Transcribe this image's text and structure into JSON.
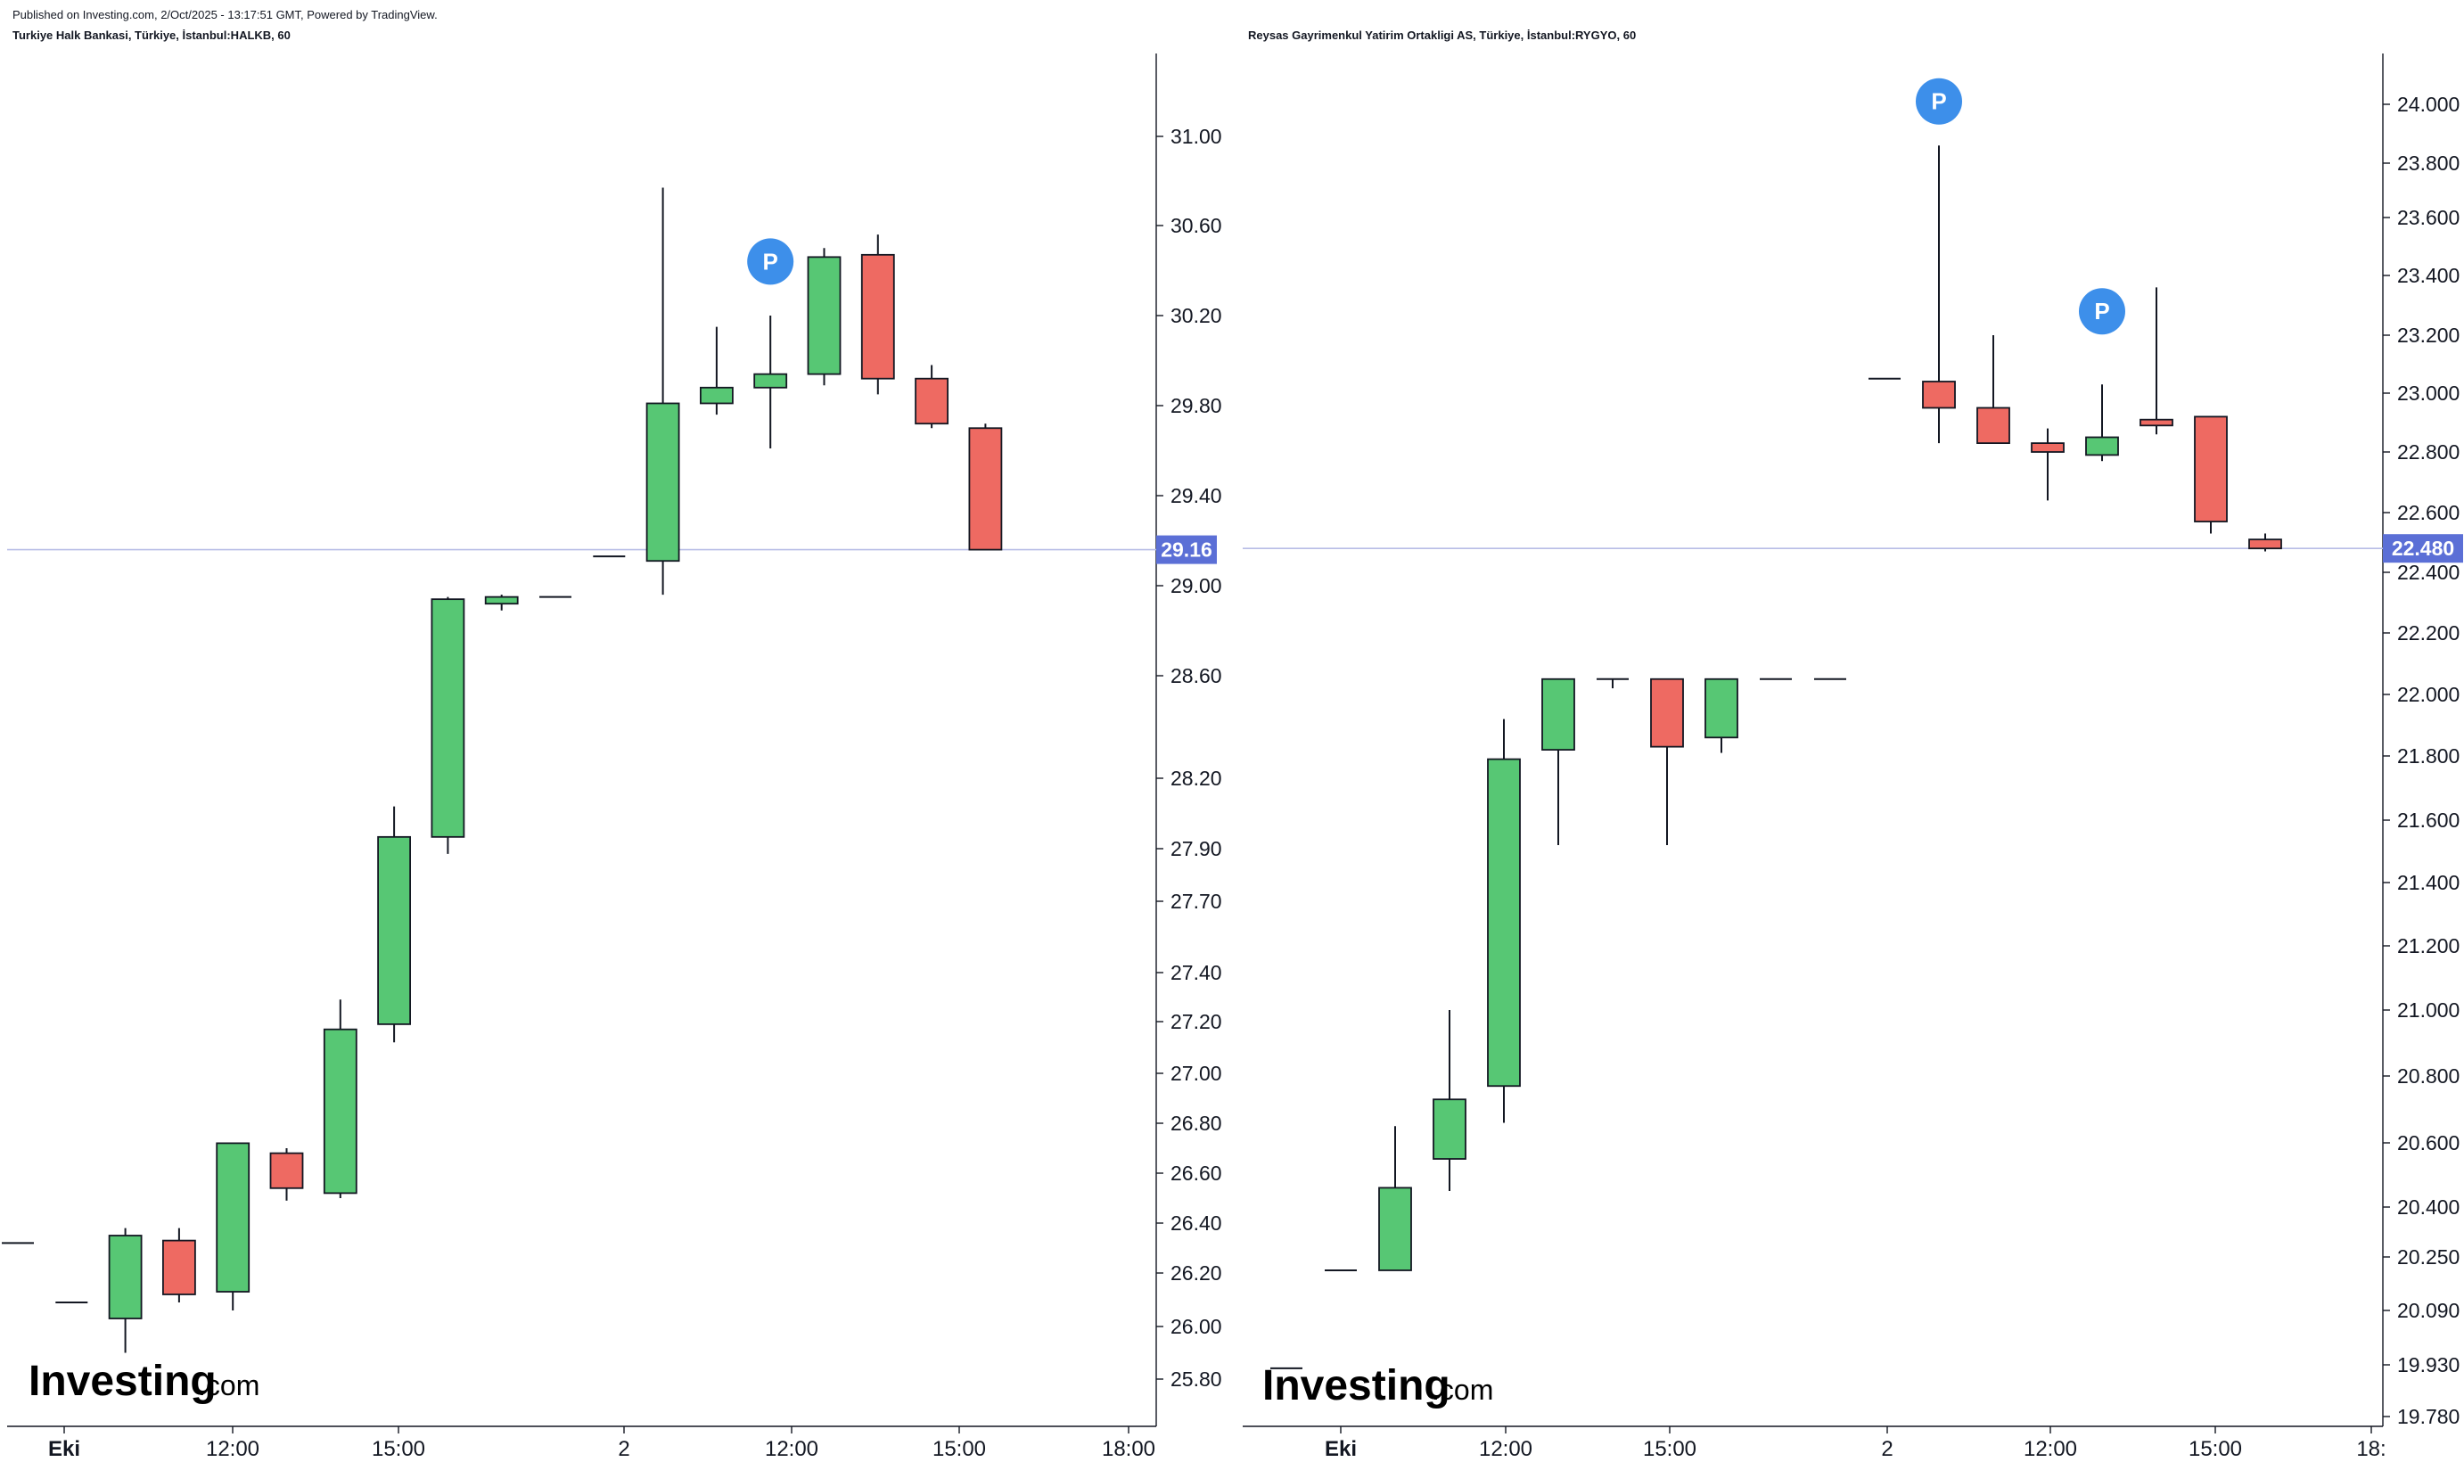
{
  "header": {
    "published": "Published on Investing.com, 2/Oct/2025 - 13:17:51 GMT, Powered by TradingView."
  },
  "logo": {
    "main": "Investing",
    "suffix": ".com"
  },
  "colors": {
    "up": "#57c774",
    "down": "#ee6a62",
    "price_tag": "#5b6fd6",
    "marker": "#3d8fea"
  },
  "chart_data": [
    {
      "type": "candlestick",
      "title": "Turkiye Halk Bankasi, Türkiye, İstanbul:HALKB, 60",
      "last_price": 29.16,
      "last_price_label": "29.16",
      "ylim": [
        25.6,
        31.3
      ],
      "y_ticks": [
        "31.00",
        "30.60",
        "30.20",
        "29.80",
        "29.40",
        "29.00",
        "28.60",
        "28.20",
        "27.90",
        "27.70",
        "27.40",
        "27.20",
        "27.00",
        "26.80",
        "26.60",
        "26.40",
        "26.20",
        "26.00",
        "25.80"
      ],
      "x_ticks": [
        {
          "label": "Eki",
          "bold": true
        },
        {
          "label": "12:00"
        },
        {
          "label": "15:00"
        },
        {
          "label": "2"
        },
        {
          "label": "12:00"
        },
        {
          "label": "15:00"
        },
        {
          "label": "18:00"
        }
      ],
      "markers": [
        {
          "label": "P",
          "index": 14,
          "price": 30.44
        }
      ],
      "candles": [
        {
          "o": 26.32,
          "h": 26.32,
          "l": 26.32,
          "c": 26.32
        },
        {
          "o": 26.09,
          "h": 26.09,
          "l": 26.09,
          "c": 26.09
        },
        {
          "o": 26.03,
          "h": 26.38,
          "l": 25.9,
          "c": 26.35
        },
        {
          "o": 26.33,
          "h": 26.38,
          "l": 26.09,
          "c": 26.12
        },
        {
          "o": 26.13,
          "h": 26.72,
          "l": 26.06,
          "c": 26.72
        },
        {
          "o": 26.68,
          "h": 26.7,
          "l": 26.49,
          "c": 26.54
        },
        {
          "o": 26.52,
          "h": 27.29,
          "l": 26.5,
          "c": 27.17
        },
        {
          "o": 27.19,
          "h": 28.08,
          "l": 27.12,
          "c": 27.95
        },
        {
          "o": 27.95,
          "h": 28.95,
          "l": 27.88,
          "c": 28.94
        },
        {
          "o": 28.92,
          "h": 28.96,
          "l": 28.89,
          "c": 28.95
        },
        {
          "o": 28.95,
          "h": 28.95,
          "l": 28.95,
          "c": 28.95
        },
        {
          "o": 29.13,
          "h": 29.13,
          "l": 29.13,
          "c": 29.13
        },
        {
          "o": 29.11,
          "h": 30.77,
          "l": 28.96,
          "c": 29.81
        },
        {
          "o": 29.81,
          "h": 30.15,
          "l": 29.76,
          "c": 29.88
        },
        {
          "o": 29.88,
          "h": 30.2,
          "l": 29.61,
          "c": 29.94
        },
        {
          "o": 29.94,
          "h": 30.5,
          "l": 29.89,
          "c": 30.46
        },
        {
          "o": 30.47,
          "h": 30.56,
          "l": 29.85,
          "c": 29.92
        },
        {
          "o": 29.92,
          "h": 29.98,
          "l": 29.7,
          "c": 29.72
        },
        {
          "o": 29.7,
          "h": 29.72,
          "l": 29.16,
          "c": 29.16
        }
      ]
    },
    {
      "type": "candlestick",
      "title": "Reysas Gayrimenkul Yatirim Ortakligi AS, Türkiye, İstanbul:RYGYO, 60",
      "last_price": 22.48,
      "last_price_label": "22.480",
      "y_ticks": [
        "24.000",
        "23.800",
        "23.600",
        "23.400",
        "23.200",
        "23.000",
        "22.800",
        "22.600",
        "22.400",
        "22.200",
        "22.000",
        "21.800",
        "21.600",
        "21.400",
        "21.200",
        "21.000",
        "20.800",
        "20.600",
        "20.400",
        "20.250",
        "20.090",
        "19.930",
        "19.780"
      ],
      "x_ticks": [
        {
          "label": "Eki",
          "bold": true
        },
        {
          "label": "12:00"
        },
        {
          "label": "15:00"
        },
        {
          "label": "2"
        },
        {
          "label": "12:00"
        },
        {
          "label": "15:00"
        },
        {
          "label": "18:"
        }
      ],
      "markers": [
        {
          "label": "P",
          "index": 12,
          "price": 24.01
        },
        {
          "label": "P",
          "index": 15,
          "price": 23.28
        }
      ],
      "candles": [
        {
          "o": 19.92,
          "h": 19.92,
          "l": 19.92,
          "c": 19.92
        },
        {
          "o": 20.21,
          "h": 20.21,
          "l": 20.21,
          "c": 20.21
        },
        {
          "o": 20.21,
          "h": 20.65,
          "l": 20.21,
          "c": 20.46
        },
        {
          "o": 20.55,
          "h": 21.0,
          "l": 20.45,
          "c": 20.73
        },
        {
          "o": 20.77,
          "h": 21.92,
          "l": 20.66,
          "c": 21.79
        },
        {
          "o": 21.82,
          "h": 22.05,
          "l": 21.52,
          "c": 22.05
        },
        {
          "o": 22.05,
          "h": 22.05,
          "l": 22.02,
          "c": 22.05
        },
        {
          "o": 22.05,
          "h": 22.05,
          "l": 21.52,
          "c": 21.83
        },
        {
          "o": 21.86,
          "h": 22.05,
          "l": 21.81,
          "c": 22.05
        },
        {
          "o": 22.05,
          "h": 22.05,
          "l": 22.05,
          "c": 22.05
        },
        {
          "o": 22.05,
          "h": 22.05,
          "l": 22.05,
          "c": 22.05
        },
        {
          "o": 23.05,
          "h": 23.05,
          "l": 23.05,
          "c": 23.05
        },
        {
          "o": 23.04,
          "h": 23.86,
          "l": 22.83,
          "c": 22.95
        },
        {
          "o": 22.95,
          "h": 23.2,
          "l": 22.83,
          "c": 22.83
        },
        {
          "o": 22.83,
          "h": 22.88,
          "l": 22.64,
          "c": 22.8
        },
        {
          "o": 22.79,
          "h": 23.03,
          "l": 22.77,
          "c": 22.85
        },
        {
          "o": 22.91,
          "h": 23.36,
          "l": 22.86,
          "c": 22.89
        },
        {
          "o": 22.92,
          "h": 22.92,
          "l": 22.53,
          "c": 22.57
        },
        {
          "o": 22.51,
          "h": 22.53,
          "l": 22.47,
          "c": 22.48
        }
      ]
    }
  ]
}
